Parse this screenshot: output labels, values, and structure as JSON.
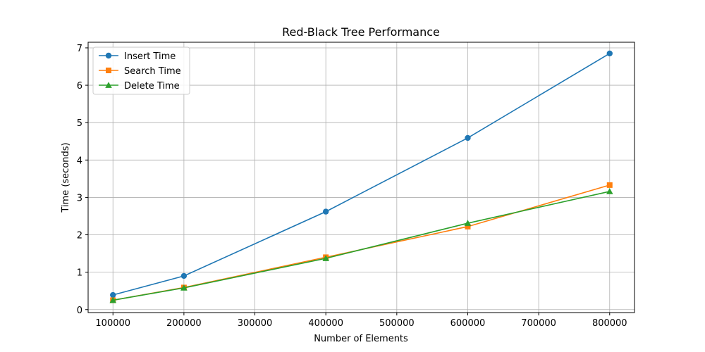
{
  "chart_data": {
    "type": "line",
    "title": "Red-Black Tree Performance",
    "xlabel": "Number of Elements",
    "ylabel": "Time (seconds)",
    "x": [
      100000,
      200000,
      400000,
      600000,
      800000
    ],
    "xlim": [
      65000,
      835000
    ],
    "ylim": [
      -0.08,
      7.15
    ],
    "xticks": [
      100000,
      200000,
      300000,
      400000,
      500000,
      600000,
      700000,
      800000
    ],
    "yticks": [
      0,
      1,
      2,
      3,
      4,
      5,
      6,
      7
    ],
    "grid": true,
    "legend_position": "top-left",
    "series": [
      {
        "name": "Insert Time",
        "color": "#1f77b4",
        "marker": "circle",
        "values": [
          0.39,
          0.9,
          2.62,
          4.59,
          6.85
        ]
      },
      {
        "name": "Search Time",
        "color": "#ff7f0e",
        "marker": "square",
        "values": [
          0.25,
          0.59,
          1.4,
          2.22,
          3.33
        ]
      },
      {
        "name": "Delete Time",
        "color": "#2ca02c",
        "marker": "triangle",
        "values": [
          0.25,
          0.58,
          1.37,
          2.31,
          3.16
        ]
      }
    ]
  }
}
